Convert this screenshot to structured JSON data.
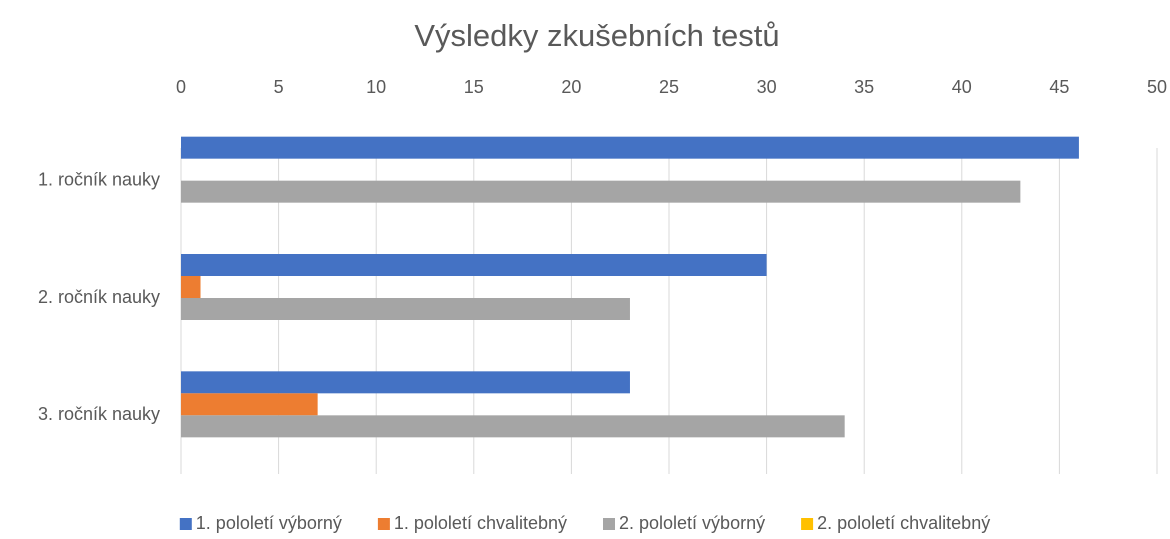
{
  "chart_data": {
    "type": "barh",
    "title": "Výsledky zkušebních testů",
    "categories": [
      "1. ročník nauky",
      "2. ročník nauky",
      "3. ročník nauky"
    ],
    "series": [
      {
        "name": "1. pololetí výborný",
        "color": "#4472c4",
        "values": [
          46,
          30,
          23
        ]
      },
      {
        "name": "1. pololetí chvalitebný",
        "color": "#ed7d31",
        "values": [
          0,
          1,
          7
        ]
      },
      {
        "name": "2. pololetí výborný",
        "color": "#a5a5a5",
        "values": [
          43,
          23,
          34
        ]
      },
      {
        "name": "2. pololetí chvalitebný",
        "color": "#ffc000",
        "values": [
          0,
          0,
          0
        ]
      }
    ],
    "xlim": [
      0,
      50
    ],
    "xticks": [
      0,
      5,
      10,
      15,
      20,
      25,
      30,
      35,
      40,
      45,
      50
    ],
    "grid": true,
    "legend": "bottom"
  }
}
